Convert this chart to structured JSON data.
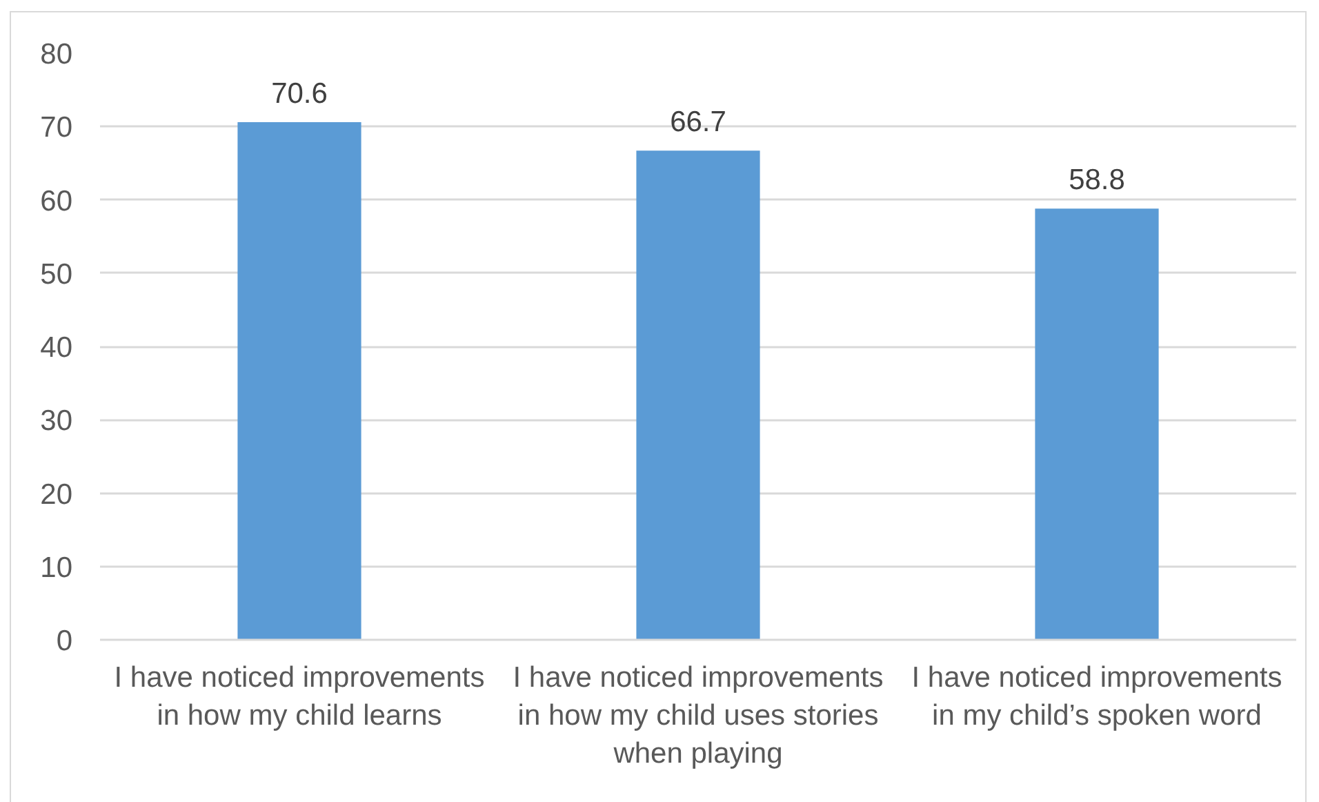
{
  "chart_data": {
    "type": "bar",
    "categories": [
      "I have noticed improvements in how my child learns",
      "I have noticed improvements in how my child uses stories when playing",
      "I have noticed improvements in my child’s spoken word"
    ],
    "values": [
      70.6,
      66.7,
      58.8
    ],
    "color": "#5b9bd5",
    "ylim": [
      0,
      80
    ],
    "yticks": [
      0,
      10,
      20,
      30,
      40,
      50,
      60,
      70,
      80
    ],
    "grid": "y",
    "data_labels": true
  }
}
